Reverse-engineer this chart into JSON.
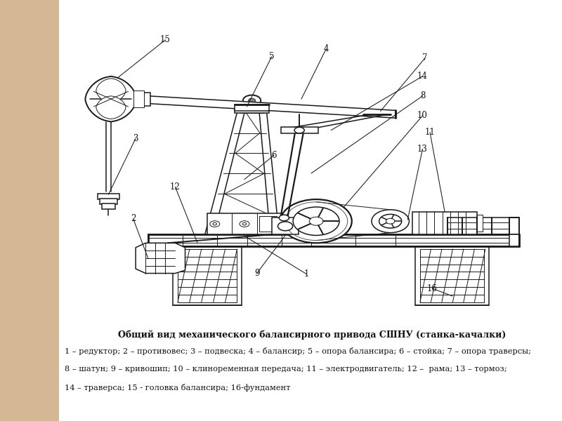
{
  "bg_color": "#d4b896",
  "main_bg": "#ffffff",
  "title_bold": "Общий вид механического балансирного привода СШНУ (станка-качалки)",
  "caption_lines": [
    "1 – редуктор; 2 – противовес; 3 – подвеска; 4 – балансир; 5 – опора балансира; 6 – стойка; 7 – опора траверсы;",
    "8 – шатун; 9 – кривошип; 10 – клиноременная передача; 11 – электродвигатель; 12 –  рама; 13 – тормоз;",
    "14 – траверса; 15 - головка балансира; 16-фундамент"
  ],
  "left_panel_color": "#c8a878",
  "line_color": "#1a1a1a",
  "label_color": "#111111",
  "lw_main": 1.1,
  "lw_thick": 2.0,
  "lw_thin": 0.7
}
